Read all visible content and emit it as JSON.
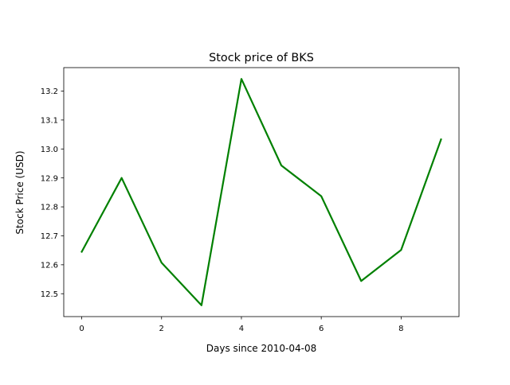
{
  "chart_data": {
    "type": "line",
    "title": "Stock price of BKS",
    "xlabel": "Days since 2010-04-08",
    "ylabel": "Stock Price (USD)",
    "x": [
      0,
      1,
      2,
      3,
      4,
      5,
      6,
      7,
      8,
      9
    ],
    "series": [
      {
        "values": [
          12.645,
          12.9,
          12.607,
          12.46,
          13.242,
          12.943,
          12.837,
          12.544,
          12.651,
          13.033
        ],
        "color": "#008000"
      }
    ],
    "xlim": [
      -0.45,
      9.45
    ],
    "ylim": [
      12.421,
      13.281
    ],
    "xticks": [
      0,
      2,
      4,
      6,
      8
    ],
    "xtick_labels": [
      "0",
      "2",
      "4",
      "6",
      "8"
    ],
    "yticks": [
      12.5,
      12.6,
      12.7,
      12.8,
      12.9,
      13.0,
      13.1,
      13.2
    ],
    "ytick_labels": [
      "12.5",
      "12.6",
      "12.7",
      "12.8",
      "12.9",
      "13.0",
      "13.1",
      "13.2"
    ],
    "grid": false,
    "legend": "none"
  }
}
